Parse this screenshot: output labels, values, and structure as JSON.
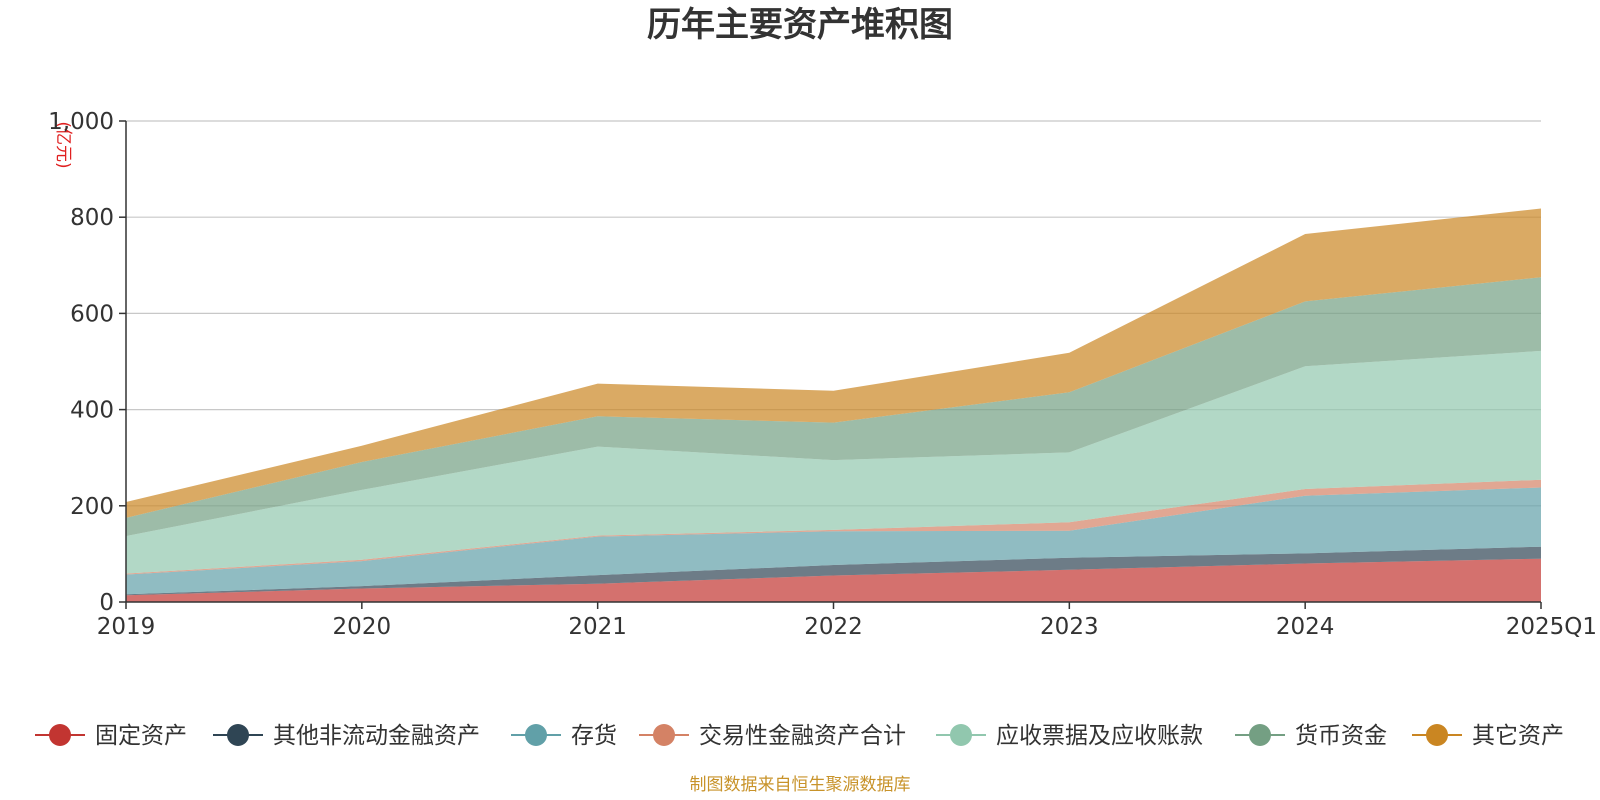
{
  "chart_data": {
    "type": "area",
    "stacked": true,
    "title": "历年主要资产堆积图",
    "unit_label": "(亿元)",
    "source": "制图数据来自恒生聚源数据库",
    "categories": [
      "2019",
      "2020",
      "2021",
      "2022",
      "2023",
      "2024",
      "2025Q1"
    ],
    "ylim": [
      0,
      1000
    ],
    "yticks": [
      0,
      200,
      400,
      600,
      800,
      1000
    ],
    "ytick_labels": [
      "0",
      "200",
      "400",
      "600",
      "800",
      "1,000"
    ],
    "grid": true,
    "legend_position": "bottom",
    "series": [
      {
        "name": "固定资产",
        "color": "#c23531",
        "values": [
          14,
          28,
          38,
          55,
          67,
          80,
          90
        ]
      },
      {
        "name": "其他非流动金融资产",
        "color": "#2f4554",
        "values": [
          2,
          5,
          18,
          22,
          25,
          21,
          25
        ]
      },
      {
        "name": "存货",
        "color": "#61a0a8",
        "values": [
          41,
          52,
          80,
          70,
          56,
          120,
          123
        ]
      },
      {
        "name": "交易性金融资产合计",
        "color": "#d48265",
        "values": [
          2,
          3,
          2,
          3,
          18,
          14,
          16
        ]
      },
      {
        "name": "应收票据及应收账款",
        "color": "#91c7ae",
        "values": [
          78,
          145,
          185,
          145,
          145,
          255,
          268
        ]
      },
      {
        "name": "货币资金",
        "color": "#749f83",
        "values": [
          38,
          58,
          63,
          78,
          125,
          135,
          153
        ]
      },
      {
        "name": "其它资产",
        "color": "#ca8622",
        "values": [
          33,
          34,
          68,
          66,
          82,
          140,
          143
        ]
      }
    ]
  }
}
